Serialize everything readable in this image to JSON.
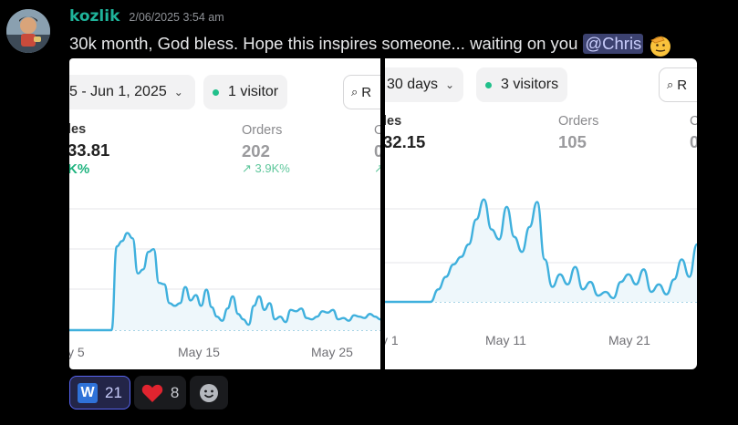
{
  "message": {
    "username": "kozlik",
    "timestamp": "2/06/2025 3:54 am",
    "text": "30k month, God bless. Hope this inspires someone... waiting on you",
    "mention": "@Chris",
    "emoji": "saluting-face"
  },
  "screenshot_left": {
    "date_range": "5 - Jun 1, 2025",
    "visitors": "1 visitor",
    "report_button": "R",
    "sales_label": "les",
    "sales_value": "33.81",
    "sales_change": "K%",
    "orders_label": "Orders",
    "orders_value": "202",
    "orders_change": "↗ 3.9K%",
    "extra_label": "O",
    "extra_value": "0",
    "extra_change": "↗",
    "x_labels": [
      "y 5",
      "May 15",
      "May 25"
    ],
    "series": [
      0,
      0,
      0,
      0,
      0,
      0,
      0,
      0,
      0,
      0.62,
      0.66,
      0.72,
      0.68,
      0.42,
      0.45,
      0.58,
      0.6,
      0.35,
      0.34,
      0.2,
      0.18,
      0.2,
      0.32,
      0.22,
      0.26,
      0.18,
      0.3,
      0.17,
      0.1,
      0.07,
      0.16,
      0.25,
      0.12,
      0.08,
      0.04,
      0.18,
      0.25,
      0.15,
      0.2,
      0.08,
      0.1,
      0.06,
      0.15,
      0.14,
      0.16,
      0.09,
      0.08,
      0.1,
      0.14,
      0.13,
      0.15,
      0.08,
      0.09,
      0.07,
      0.11,
      0.1,
      0.09,
      0.12,
      0.1,
      0.08
    ]
  },
  "screenshot_right": {
    "date_range": "30 days",
    "visitors": "3 visitors",
    "report_button": "R",
    "sales_label": "les",
    "sales_value": "32.15",
    "orders_label": "Orders",
    "orders_value": "105",
    "extra_label": "C",
    "extra_value": "0",
    "x_labels": [
      "y 1",
      "May 11",
      "May 21"
    ],
    "series": [
      0,
      0,
      0,
      0,
      0,
      0,
      0,
      0.1,
      0.2,
      0.3,
      0.36,
      0.46,
      0.66,
      0.82,
      0.58,
      0.5,
      0.76,
      0.52,
      0.4,
      0.6,
      0.8,
      0.34,
      0.12,
      0.22,
      0.14,
      0.28,
      0.1,
      0.16,
      0.05,
      0.08,
      0.03,
      0.16,
      0.22,
      0.14,
      0.26,
      0.08,
      0.14,
      0.06,
      0.18,
      0.34,
      0.2,
      0.46
    ]
  },
  "reactions": [
    {
      "icon": "w-letter",
      "letter": "W",
      "count": "21",
      "me": true
    },
    {
      "icon": "heart-icon",
      "count": "8",
      "me": false
    }
  ],
  "colors": {
    "username": "#1fb39a",
    "line": "#3fb0dd",
    "positive": "#1db37e",
    "mention_bg": "#3c4270",
    "reaction_me_border": "#5865f2"
  }
}
